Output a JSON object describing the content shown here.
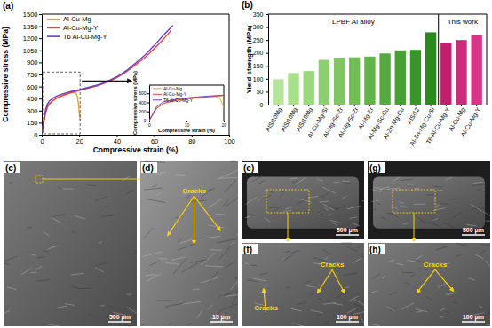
{
  "chart_data": [
    {
      "type": "line",
      "panel_label": "(a)",
      "x_label": "Compressive strain (%)",
      "y_label": "Compressive stress (MPa)",
      "xlim": [
        0,
        100
      ],
      "xticks": [
        0,
        20,
        40,
        60,
        80,
        100
      ],
      "ylim": [
        0,
        1500
      ],
      "yticks": [
        0,
        150,
        300,
        450,
        600,
        750,
        900,
        1050,
        1200,
        1350,
        1500
      ],
      "legend": "top-left",
      "series": [
        {
          "name": "Al-Cu-Mg",
          "color": "#f0a030",
          "x": [
            0,
            1,
            2,
            3,
            4,
            6,
            8,
            10,
            12,
            14,
            16,
            17,
            18,
            19,
            19.5,
            20,
            20.5
          ],
          "values": [
            0,
            150,
            280,
            350,
            390,
            430,
            460,
            480,
            500,
            515,
            528,
            530,
            525,
            480,
            400,
            280,
            180
          ]
        },
        {
          "name": "Al-Cu-Mg-Y",
          "color": "#e2403a",
          "x": [
            0,
            1,
            2,
            3,
            4,
            6,
            8,
            10,
            12,
            16,
            20,
            25,
            30,
            35,
            40,
            45,
            50,
            55,
            60,
            65,
            69
          ],
          "values": [
            0,
            140,
            270,
            340,
            380,
            425,
            455,
            475,
            495,
            525,
            550,
            580,
            610,
            655,
            710,
            780,
            870,
            960,
            1070,
            1190,
            1300
          ]
        },
        {
          "name": "T6 Al-Cu-Mg-Y",
          "color": "#6a3ac8",
          "x": [
            0,
            1,
            2,
            3,
            4,
            6,
            8,
            10,
            12,
            16,
            20,
            25,
            30,
            35,
            40,
            45,
            50,
            55,
            60,
            65,
            70
          ],
          "values": [
            0,
            170,
            310,
            380,
            420,
            455,
            480,
            500,
            515,
            540,
            560,
            590,
            620,
            665,
            720,
            795,
            890,
            990,
            1110,
            1240,
            1360
          ]
        }
      ]
    },
    {
      "type": "line",
      "x_label": "Compressive strain (%)",
      "y_label": "Compressive stress (MPa)",
      "xlim": [
        0,
        20
      ],
      "xticks": [
        0,
        10,
        20
      ],
      "ylim": [
        0,
        780
      ],
      "yticks": [
        0,
        200,
        400,
        600
      ],
      "legend": "top-left",
      "series": [
        {
          "name": "Al-Cu-Mg",
          "color": "#f0a030",
          "x": [
            0,
            2,
            4,
            8,
            12,
            16,
            18,
            19,
            20
          ],
          "values": [
            0,
            280,
            390,
            460,
            500,
            528,
            525,
            480,
            280
          ]
        },
        {
          "name": "Al-Cu-Mg-Y",
          "color": "#e2403a",
          "x": [
            0,
            2,
            4,
            8,
            12,
            16,
            20
          ],
          "values": [
            0,
            270,
            380,
            455,
            495,
            525,
            550
          ]
        },
        {
          "name": "T6 Al-Cu-Mg-Y",
          "color": "#6a3ac8",
          "x": [
            0,
            2,
            4,
            8,
            12,
            16,
            20
          ],
          "values": [
            0,
            310,
            420,
            480,
            515,
            540,
            560
          ]
        }
      ]
    },
    {
      "type": "bar",
      "panel_label": "(b)",
      "y_label": "Yield strength (MPa)",
      "ylim": [
        0,
        350
      ],
      "yticks": [
        0,
        50,
        100,
        150,
        200,
        250,
        300,
        350
      ],
      "groups": [
        {
          "name": "LPBF Al alloy",
          "categories": [
            "AlSi10Mg",
            "AlSi10Mg",
            "AlSi10Mg",
            "Al-Cu-Mg-Si",
            "Al-Mg-Sc-Zr",
            "Al-Mg-Sc-Zr",
            "Al-Mg-Zr",
            "Al-Mg-Sc-Cu",
            "Al-Zn-Mg-Cu",
            "AlSi12",
            "Al-Zn-Mg-Cu-Si"
          ],
          "values": [
            98,
            122,
            130,
            173,
            182,
            183,
            186,
            198,
            210,
            212,
            280
          ],
          "colors": [
            "#b5e59a",
            "#a8df8c",
            "#9ad87e",
            "#8ccf70",
            "#7ec663",
            "#70bd56",
            "#62b44a",
            "#54aa3e",
            "#46a033",
            "#389528",
            "#2a8a1e"
          ]
        },
        {
          "name": "This work",
          "categories": [
            "T6 Al-Cu-Mg-Y",
            "Al-Cu-Mg",
            "Al-Cu-Mg-Y"
          ],
          "values": [
            240,
            250,
            268
          ],
          "colors": [
            "#c2206e",
            "#cc2a7a",
            "#d93488"
          ]
        }
      ]
    }
  ],
  "images": [
    {
      "panel_label": "(c)",
      "scale_bar": "500 μm"
    },
    {
      "panel_label": "(d)",
      "scale_bar": "15 μm",
      "annotations": [
        "Cracks"
      ]
    },
    {
      "panel_label": "(e)",
      "scale_bar": "500 μm"
    },
    {
      "panel_label": "(f)",
      "scale_bar": "100 μm",
      "annotations": [
        "Cracks",
        "Cracks"
      ]
    },
    {
      "panel_label": "(g)",
      "scale_bar": "500 μm"
    },
    {
      "panel_label": "(h)",
      "scale_bar": "100 μm",
      "annotations": [
        "Cracks"
      ]
    }
  ]
}
